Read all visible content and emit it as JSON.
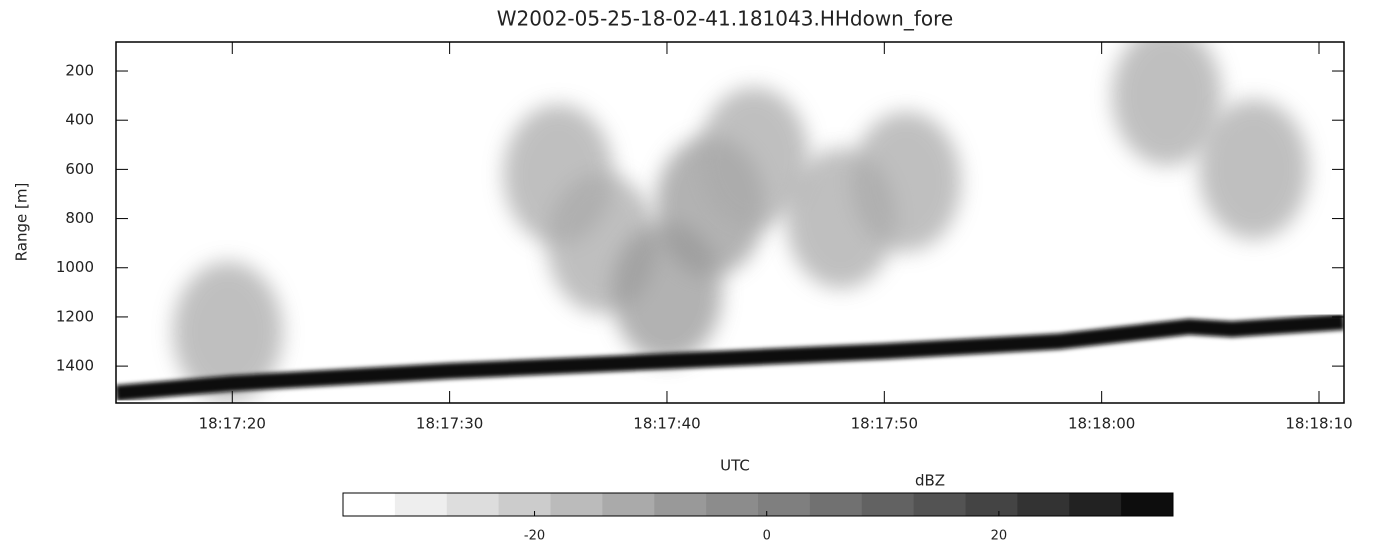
{
  "chart_data": {
    "type": "radar-image",
    "title": "W2002-05-25-18-02-41.181043.HHdown_fore",
    "xlabel": "UTC",
    "ylabel": "Range [m]",
    "xlim": [
      "18:17:14.65",
      "18:18:11.15"
    ],
    "xticks": [
      "18:17:20",
      "18:17:30",
      "18:17:40",
      "18:17:50",
      "18:18:00",
      "18:18:10"
    ],
    "ylim": [
      1550,
      82
    ],
    "yticks": [
      200,
      400,
      600,
      800,
      1000,
      1200,
      1400
    ],
    "series": [
      {
        "color": "#0d0d0d",
        "x": [
          "18:17:14.65",
          "18:17:20",
          "18:17:30",
          "18:17:40",
          "18:17:50",
          "18:17:58",
          "18:18:04",
          "18:18:06",
          "18:18:11.15"
        ],
        "values": [
          1510,
          1470,
          1420,
          1380,
          1340,
          1300,
          1240,
          1250,
          1220
        ]
      }
    ],
    "echoes": {
      "x": [
        "18:17:19.8",
        "18:17:35",
        "18:17:37",
        "18:17:40",
        "18:17:42",
        "18:17:44",
        "18:17:48",
        "18:17:51",
        "18:18:03",
        "18:18:07"
      ],
      "values": [
        1260,
        620,
        900,
        1100,
        750,
        550,
        800,
        650,
        300,
        600
      ],
      "dbz": [
        -12,
        -12,
        -10,
        -8,
        -8,
        -12,
        -10,
        -12,
        -14,
        -12
      ]
    },
    "colorbar": {
      "label": "dBZ",
      "lim": [
        -36.5,
        35
      ],
      "ticks": [
        -20,
        0,
        20
      ],
      "colors": [
        "#ffffff",
        "#eeeeee",
        "#dddddd",
        "#cccccc",
        "#bbbbbb",
        "#aaaaaa",
        "#999999",
        "#8c8c8c",
        "#7f7f7f",
        "#717171",
        "#626262",
        "#535353",
        "#444444",
        "#333333",
        "#222222",
        "#0d0d0d"
      ]
    }
  }
}
